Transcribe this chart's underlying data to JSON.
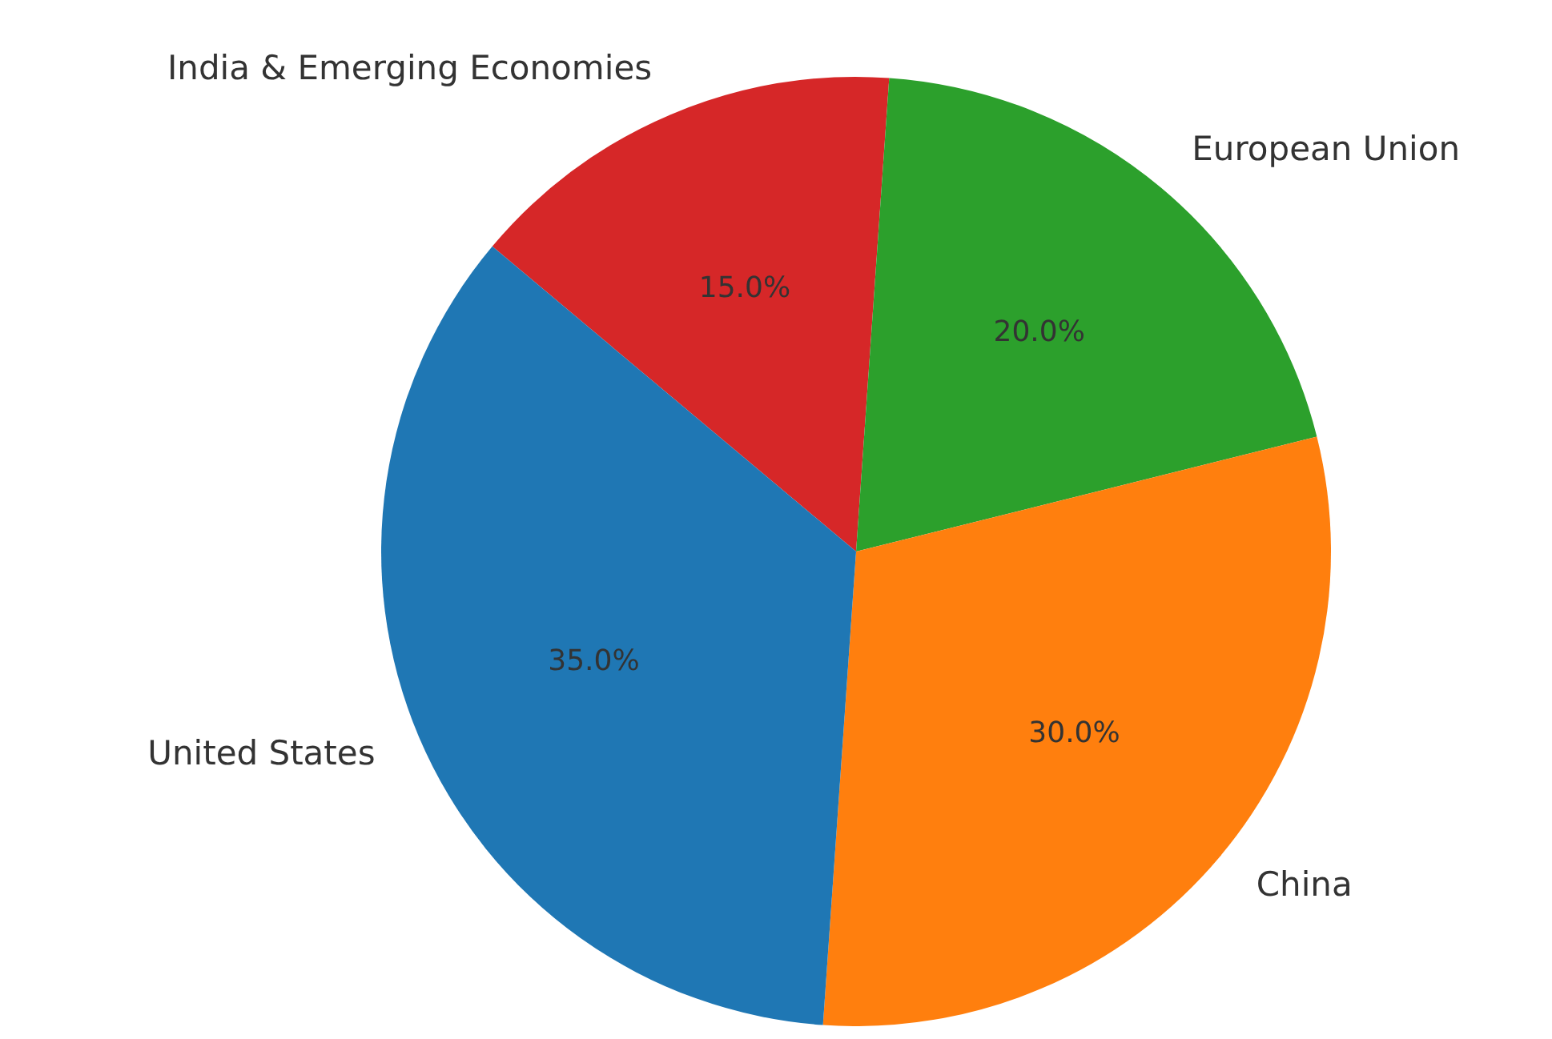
{
  "chart_data": {
    "type": "pie",
    "categories": [
      "India & Emerging Economies",
      "European Union",
      "China",
      "United States"
    ],
    "values": [
      15,
      20,
      30,
      35
    ],
    "value_labels": [
      "15.0%",
      "20.0%",
      "30.0%",
      "35.0%"
    ],
    "colors": [
      "#d62728",
      "#2ca02c",
      "#ff7f0e",
      "#1f77b4"
    ],
    "legend": false
  }
}
